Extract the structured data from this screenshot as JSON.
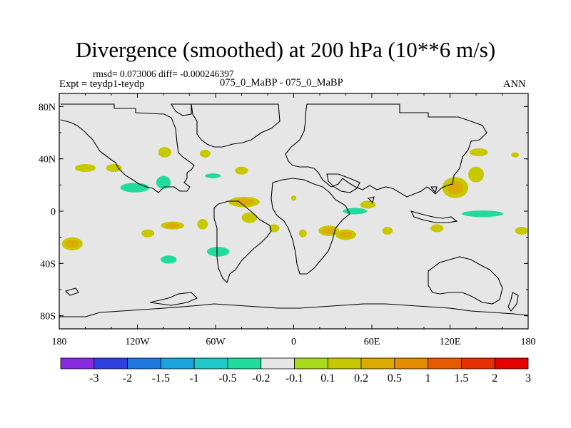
{
  "chart_data": {
    "type": "heatmap",
    "title": "Divergence (smoothed) at 200 hPa (10**6 m/s)",
    "stats": "rmsd= 0.073006 diff= -0.000246397",
    "experiment": "Expt = teydp1-teydp",
    "case": "075_0_MaBP - 075_0_MaBP",
    "season": "ANN",
    "xlim": [
      -180,
      180
    ],
    "ylim": [
      -90,
      90
    ],
    "xticks": [
      {
        "value": -180,
        "label": "180"
      },
      {
        "value": -120,
        "label": "120W"
      },
      {
        "value": -60,
        "label": "60W"
      },
      {
        "value": 0,
        "label": "0"
      },
      {
        "value": 60,
        "label": "60E"
      },
      {
        "value": 120,
        "label": "120E"
      },
      {
        "value": 180,
        "label": "180"
      }
    ],
    "yticks": [
      {
        "value": 80,
        "label": "80N"
      },
      {
        "value": 40,
        "label": "40N"
      },
      {
        "value": 0,
        "label": "0"
      },
      {
        "value": -40,
        "label": "40S"
      },
      {
        "value": -80,
        "label": "80S"
      }
    ],
    "colorbar": {
      "colors": [
        "#8a2be2",
        "#3040e0",
        "#1e78e0",
        "#1ca5dc",
        "#21c8c8",
        "#20dc9c",
        "#e6e6e6",
        "#a6dc1c",
        "#c8c800",
        "#dcaa00",
        "#e68c00",
        "#e65a00",
        "#e63000",
        "#e60000"
      ],
      "labels": [
        "-3",
        "-2",
        "-1.5",
        "-1",
        "-0.5",
        "-0.2",
        "-0.1",
        "0.1",
        "0.2",
        "0.5",
        "1",
        "1.5",
        "2",
        "3"
      ]
    },
    "field_blobs": [
      {
        "lon": -160,
        "lat": 33,
        "dlon": 8,
        "dlat": 3,
        "value": 0.2
      },
      {
        "lon": -138,
        "lat": 33,
        "dlon": 6,
        "dlat": 3,
        "value": 0.2
      },
      {
        "lon": -122,
        "lat": 18,
        "dlon": 18,
        "dlat": 6,
        "value": -0.3
      },
      {
        "lon": -100,
        "lat": 22,
        "dlon": 9,
        "dlat": 8,
        "value": -0.4
      },
      {
        "lon": -80,
        "lat": 24,
        "dlon": 7,
        "dlat": 7,
        "value": -0.2
      },
      {
        "lon": -62,
        "lat": 27,
        "dlon": 10,
        "dlat": 3,
        "value": -0.4
      },
      {
        "lon": -99,
        "lat": 45,
        "dlon": 5,
        "dlat": 4,
        "value": 0.2
      },
      {
        "lon": -68,
        "lat": 44,
        "dlon": 4,
        "dlat": 3,
        "value": 0.2
      },
      {
        "lon": -47,
        "lat": 42,
        "dlon": 4,
        "dlat": 3,
        "value": -0.2
      },
      {
        "lon": -40,
        "lat": 31,
        "dlon": 5,
        "dlat": 3,
        "value": 0.2
      },
      {
        "lon": -150,
        "lat": -7,
        "dlon": 5,
        "dlat": 3,
        "value": -0.2
      },
      {
        "lon": -93,
        "lat": -11,
        "dlon": 9,
        "dlat": 3,
        "value": 0.35
      },
      {
        "lon": -70,
        "lat": -10,
        "dlon": 4,
        "dlat": 4,
        "value": 0.2
      },
      {
        "lon": -38,
        "lat": 7,
        "dlon": 12,
        "dlat": 4,
        "value": 0.3
      },
      {
        "lon": -34,
        "lat": -5,
        "dlon": 6,
        "dlat": 4,
        "value": 0.2
      },
      {
        "lon": -170,
        "lat": -25,
        "dlon": 8,
        "dlat": 5,
        "value": 0.3
      },
      {
        "lon": -140,
        "lat": -20,
        "dlon": 7,
        "dlat": 3,
        "value": -0.2
      },
      {
        "lon": -112,
        "lat": -17,
        "dlon": 5,
        "dlat": 3,
        "value": 0.2
      },
      {
        "lon": -96,
        "lat": -37,
        "dlon": 10,
        "dlat": 5,
        "value": -0.3
      },
      {
        "lon": -58,
        "lat": -31,
        "dlon": 14,
        "dlat": 6,
        "value": -0.25
      },
      {
        "lon": -15,
        "lat": -13,
        "dlon": 4,
        "dlat": 3,
        "value": 0.2
      },
      {
        "lon": 7,
        "lat": -17,
        "dlon": 3,
        "dlat": 3,
        "value": 0.2
      },
      {
        "lon": 8,
        "lat": 34,
        "dlon": 5,
        "dlat": 3,
        "value": -0.2
      },
      {
        "lon": 27,
        "lat": -15,
        "dlon": 8,
        "dlat": 4,
        "value": 0.4
      },
      {
        "lon": 40,
        "lat": -18,
        "dlon": 8,
        "dlat": 4,
        "value": 0.25
      },
      {
        "lon": 47,
        "lat": 0,
        "dlon": 15,
        "dlat": 4,
        "value": -0.35
      },
      {
        "lon": 57,
        "lat": 5,
        "dlon": 6,
        "dlat": 3,
        "value": 0.2
      },
      {
        "lon": 43,
        "lat": 22,
        "dlon": 4,
        "dlat": 3,
        "value": -0.2
      },
      {
        "lon": 45,
        "lat": -35,
        "dlon": 12,
        "dlat": 6,
        "value": -0.2
      },
      {
        "lon": 72,
        "lat": -15,
        "dlon": 4,
        "dlat": 3,
        "value": 0.2
      },
      {
        "lon": 82,
        "lat": -5,
        "dlon": 9,
        "dlat": 3,
        "value": -0.2
      },
      {
        "lon": 92,
        "lat": 27,
        "dlon": 5,
        "dlat": 3,
        "value": -0.2
      },
      {
        "lon": 110,
        "lat": -13,
        "dlon": 5,
        "dlat": 3,
        "value": 0.2
      },
      {
        "lon": 124,
        "lat": 18,
        "dlon": 10,
        "dlat": 8,
        "value": 0.45
      },
      {
        "lon": 140,
        "lat": 28,
        "dlon": 6,
        "dlat": 6,
        "value": 0.2
      },
      {
        "lon": 145,
        "lat": -2,
        "dlon": 26,
        "dlat": 4,
        "value": -0.5
      },
      {
        "lon": 133,
        "lat": 8,
        "dlon": 6,
        "dlat": 3,
        "value": -0.2
      },
      {
        "lon": 142,
        "lat": 45,
        "dlon": 7,
        "dlat": 3,
        "value": 0.2
      },
      {
        "lon": 102,
        "lat": 38,
        "dlon": 6,
        "dlat": 3,
        "value": -0.2
      },
      {
        "lon": 175,
        "lat": -15,
        "dlon": 5,
        "dlat": 3,
        "value": 0.2
      },
      {
        "lon": 170,
        "lat": 43,
        "dlon": 3,
        "dlat": 2,
        "value": 0.2
      },
      {
        "lon": 0,
        "lat": 10,
        "dlon": 2,
        "dlat": 2,
        "value": 0.2
      }
    ]
  }
}
